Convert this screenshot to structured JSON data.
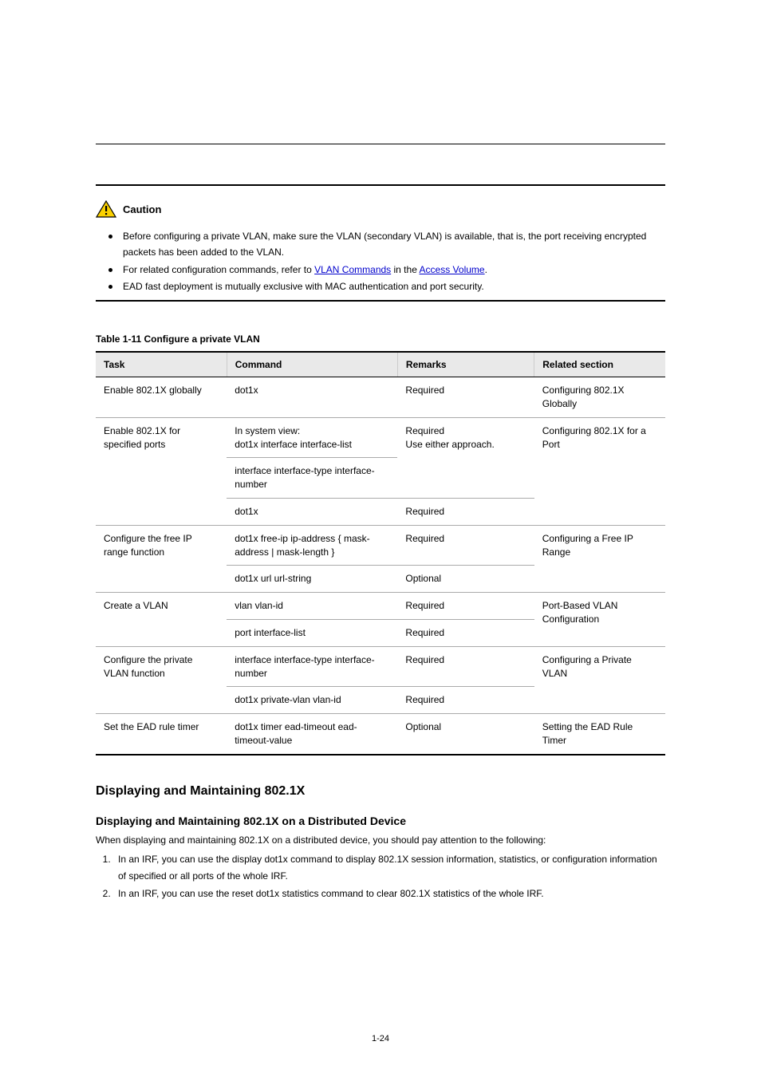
{
  "caution": {
    "label": "Caution",
    "icon_name": "caution-triangle",
    "icon_fill": "#fbd100",
    "icon_stroke": "#000000",
    "bullets": [
      {
        "pre": "Before configuring a private VLAN, make sure the VLAN (secondary VLAN) is available, that is, the port receiving encrypted packets has been added to the VLAN.",
        "links": []
      },
      {
        "pre": "For related configuration commands, refer to ",
        "links": [
          {
            "text": "VLAN Commands",
            "after": " in the "
          },
          {
            "text": "Access Volume",
            "after": "."
          }
        ]
      },
      {
        "pre": "EAD fast deployment is mutually exclusive with MAC authentication and port security.",
        "links": []
      }
    ]
  },
  "table": {
    "caption": "Table 1-11 Configure a private VLAN",
    "columns": [
      "Task",
      "Command",
      "Remarks",
      "Related section"
    ],
    "col_classes": [
      "col-task",
      "col-cmd",
      "col-rem",
      "col-rel"
    ],
    "header_bg": "#e9e9e9",
    "rows": [
      {
        "cells": [
          "Enable 802.1X globally",
          "dot1x",
          "Required",
          "Configuring 802.1X Globally"
        ],
        "rowspan": [
          1,
          1,
          1,
          1
        ]
      },
      {
        "cells": [
          "Enable 802.1X for specified ports",
          "In system view:\ndot1x interface interface-list",
          "Required\nUse either approach.",
          "Configuring 802.1X for a Port"
        ],
        "rowspan": [
          3,
          1,
          2,
          3
        ]
      },
      {
        "cells": [
          "",
          "interface interface-type interface-number",
          "",
          ""
        ],
        "rowspan": [
          0,
          1,
          0,
          0
        ]
      },
      {
        "cells": [
          "",
          "dot1x",
          "Required",
          ""
        ],
        "rowspan": [
          0,
          1,
          1,
          0
        ]
      },
      {
        "cells": [
          "Configure the free IP range function",
          "dot1x free-ip ip-address { mask-address | mask-length }",
          "Required",
          "Configuring a Free IP Range"
        ],
        "rowspan": [
          2,
          1,
          1,
          2
        ]
      },
      {
        "cells": [
          "",
          "dot1x url url-string",
          "Optional",
          ""
        ],
        "rowspan": [
          0,
          1,
          1,
          0
        ]
      },
      {
        "cells": [
          "Create a VLAN",
          "vlan vlan-id",
          "Required",
          "Port-Based VLAN Configuration"
        ],
        "rowspan": [
          2,
          1,
          1,
          2
        ]
      },
      {
        "cells": [
          "",
          "port interface-list",
          "Required",
          ""
        ],
        "rowspan": [
          0,
          1,
          1,
          0
        ]
      },
      {
        "cells": [
          "Configure the private VLAN function",
          "interface interface-type interface-number",
          "Required",
          "Configuring a Private VLAN"
        ],
        "rowspan": [
          2,
          1,
          1,
          2
        ]
      },
      {
        "cells": [
          "",
          "dot1x private-vlan vlan-id",
          "Required",
          ""
        ],
        "rowspan": [
          0,
          1,
          1,
          0
        ]
      },
      {
        "cells": [
          "Set the EAD rule timer",
          "dot1x timer ead-timeout ead-timeout-value",
          "Optional",
          "Setting the EAD Rule Timer"
        ],
        "rowspan": [
          1,
          1,
          1,
          1
        ],
        "last": true
      }
    ]
  },
  "section": {
    "h3": "Displaying and Maintaining 802.1X",
    "h4": "Displaying and Maintaining 802.1X on a Distributed Device",
    "intro": "When displaying and maintaining 802.1X on a distributed device, you should pay attention to the following:",
    "steps": [
      "In an IRF, you can use the display dot1x command to display 802.1X session information, statistics, or configuration information of specified or all ports of the whole IRF.",
      "In an IRF, you can use the reset dot1x statistics command to clear 802.1X statistics of the whole IRF."
    ]
  },
  "page_number": "1-24"
}
